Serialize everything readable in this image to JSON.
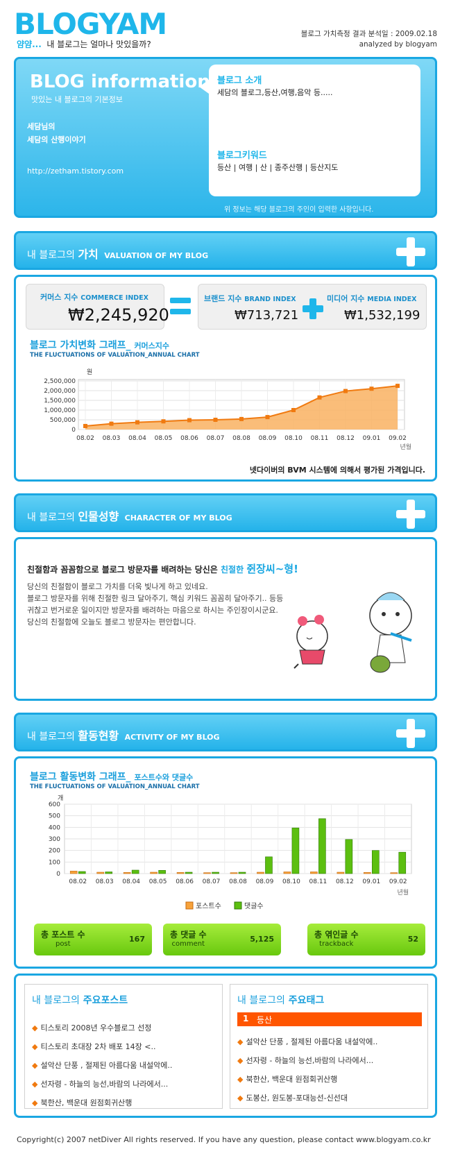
{
  "header": {
    "logo_text": "BLOGYAM",
    "tagline_prefix": "얌얌...",
    "tagline": "내 블로그는 얼마나 맛있을까?",
    "analysis_date": "블로그 가치측정 결과 분석일 : 2009.02.18",
    "analyzed_by": "analyzed by blogyam"
  },
  "blog_info": {
    "title": "BLOG information",
    "subtitle": "맛있는 내 블로그의 기본정보",
    "owner": "세담님의",
    "blog_name": "세담의 산행이야기",
    "url": "http://zetham.tistory.com",
    "intro_heading": "블로그 소개",
    "intro_text": "세담의 블로그,등산,여행,음악 등.....",
    "keyword_heading": "블로그키워드",
    "keywords": [
      "등산",
      "여행",
      "산",
      "종주산행",
      "등산지도"
    ],
    "note": "위 정보는 해당 블로그의 주인이 입력한 사항입니다."
  },
  "sections": {
    "valuation": {
      "prefix": "내 블로그의",
      "bold": "가치",
      "en": "VALUATION OF MY BLOG"
    },
    "character": {
      "prefix": "내 블로그의",
      "bold": "인물성향",
      "en": "CHARACTER OF MY BLOG"
    },
    "activity": {
      "prefix": "내 블로그의",
      "bold": "활동현황",
      "en": "ACTIVITY OF MY BLOG"
    }
  },
  "valuation": {
    "commerce_label": "커머스 지수",
    "commerce_en": "COMMERCE INDEX",
    "commerce_value": "₩2,245,920",
    "brand_label": "브랜드 지수",
    "brand_en": "BRAND INDEX",
    "brand_value": "₩713,721",
    "media_label": "미디어 지수",
    "media_en": "MEDIA INDEX",
    "media_value": "₩1,532,199",
    "chart_title": "블로그 가치변화 그래프_",
    "chart_title_sub": "커머스지수",
    "chart_subtitle": "THE FLUCTUATIONS OF VALUATION_ANNUAL CHART",
    "footnote": "넷다이버의 BVM 시스템에 의해서 평가된 가격입니다."
  },
  "character": {
    "headline_prefix": "친절함과 꼼꼼함으로 블로그 방문자를 배려하는 당신은",
    "headline_kind": "친절한",
    "headline_type": "쥔장씨~형!",
    "body": [
      "당신의 친절함이 블로그 가치를 더욱 빛나게 하고 있네요.",
      "블로그 방문자를 위해 친절한 링크 달아주기, 핵심 키워드 꼼꼼히 달아주기.. 등등",
      "귀찮고 번거로운 일이지만 방문자를 배려하는 마음으로 하시는 주인장이시군요.",
      "당신의 친절함에 오늘도 블로그 방문자는 편안합니다."
    ]
  },
  "activity": {
    "chart_title": "블로그 활동변화 그래프_",
    "chart_title_sub": "포스트수와 댓글수",
    "chart_subtitle": "THE FLUCTUATIONS OF VALUATION_ANNUAL CHART",
    "stats": [
      {
        "label": "총 포스트 수",
        "en": "post",
        "value": "167"
      },
      {
        "label": "총 댓글 수",
        "en": "comment",
        "value": "5,125"
      },
      {
        "label": "총 엮인글 수",
        "en": "trackback",
        "value": "52"
      }
    ]
  },
  "posts": {
    "title_prefix": "내 블로그의",
    "title_bold": "주요포스트",
    "items": [
      "티스토리 2008년 우수블로그 선정",
      "티스토리 초대장 2차 배포 14장 <..",
      "설악산 단풍 , 절제된 아름다움 내설악에..",
      "선자령 - 하늘의 능선,바람의 나라에서...",
      "북한산, 백운대 원점회귀산행"
    ]
  },
  "tags": {
    "title_prefix": "내 블로그의",
    "title_bold": "주요태그",
    "top_rank": "1",
    "top_tag": "등산",
    "items": [
      "설악산 단풍 , 절제된 아름다움 내설악에..",
      "선자령 - 하늘의 능선,바람의 나라에서...",
      "북한산, 백운대 원점회귀산행",
      "도봉산, 원도봉-포대능선-신선대"
    ]
  },
  "footer": {
    "copyright": "Copyright(c) 2007 netDiver All rights reserved. If you have any question, please contact www.blogyam.co.kr"
  },
  "colors": {
    "accent": "#1fb6ea",
    "bar_line": "#f07a10",
    "comment_bar": "#5cbf10",
    "post_bar": "#f7a23a"
  },
  "chart_data": [
    {
      "type": "area",
      "ylabel": "원",
      "xlabel": "년월",
      "categories": [
        "08.02",
        "08.03",
        "08.04",
        "08.05",
        "08.06",
        "08.07",
        "08.08",
        "08.09",
        "08.10",
        "08.11",
        "08.12",
        "09.01",
        "09.02"
      ],
      "values": [
        180000,
        300000,
        370000,
        420000,
        480000,
        500000,
        540000,
        640000,
        1000000,
        1650000,
        1980000,
        2100000,
        2245920
      ],
      "ylim": [
        0,
        2500000
      ],
      "yticks": [
        "0",
        "500,000",
        "1,000,000",
        "1,500,000",
        "2,000,000",
        "2,500,000"
      ],
      "grid": true
    },
    {
      "type": "bar",
      "ylabel": "개",
      "xlabel": "년월",
      "categories": [
        "08.02",
        "08.03",
        "08.04",
        "08.05",
        "08.06",
        "08.07",
        "08.08",
        "08.09",
        "08.10",
        "08.11",
        "08.12",
        "09.01",
        "09.02"
      ],
      "series": [
        {
          "name": "포스트수",
          "values": [
            22,
            12,
            10,
            12,
            10,
            8,
            8,
            12,
            15,
            15,
            12,
            10,
            8
          ]
        },
        {
          "name": "댓글수",
          "values": [
            18,
            15,
            30,
            28,
            12,
            12,
            12,
            145,
            395,
            475,
            295,
            200,
            185
          ]
        }
      ],
      "ylim": [
        0,
        600
      ],
      "yticks": [
        "0",
        "100",
        "200",
        "300",
        "400",
        "500",
        "600"
      ],
      "grid": true,
      "legend": "bottom"
    }
  ]
}
